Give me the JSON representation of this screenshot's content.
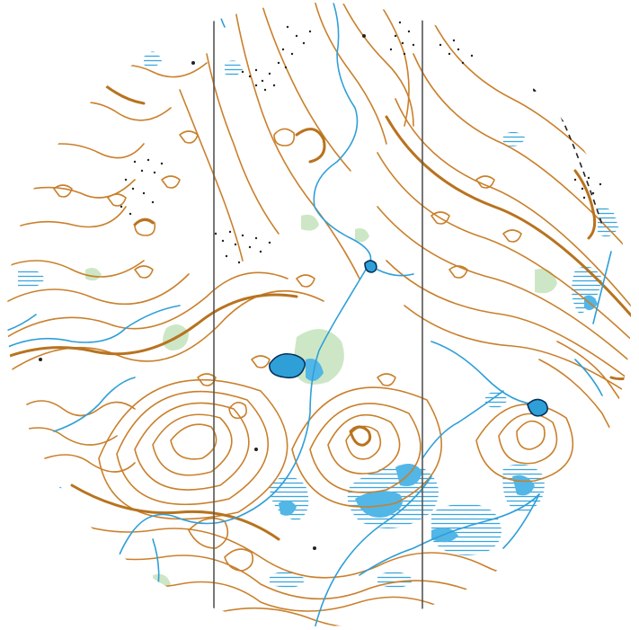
{
  "map": {
    "type": "orienteering-map",
    "shape": "circular-excerpt",
    "colors": {
      "background": "#ffffff",
      "contour": "#c9802c",
      "contour_index": "#b8731f",
      "water": "#2f9fd8",
      "water_fill": "#49b4e6",
      "marsh": "#5aaee0",
      "vegetation": "#bfe0b8",
      "magnetic_north_line": "#555555",
      "rock": "#222222",
      "boundary": "#222222"
    },
    "icons": {
      "magnetic_north_lines": "vertical-line-icon",
      "lakes": "lake-icon",
      "streams": "stream-icon",
      "marshes": "marsh-icon",
      "rocky_ground": "rock-dots-icon",
      "dashed_boundary": "dashed-path-icon"
    },
    "feature_counts": {
      "magnetic_north_lines": 2,
      "lakes": 3
    }
  }
}
